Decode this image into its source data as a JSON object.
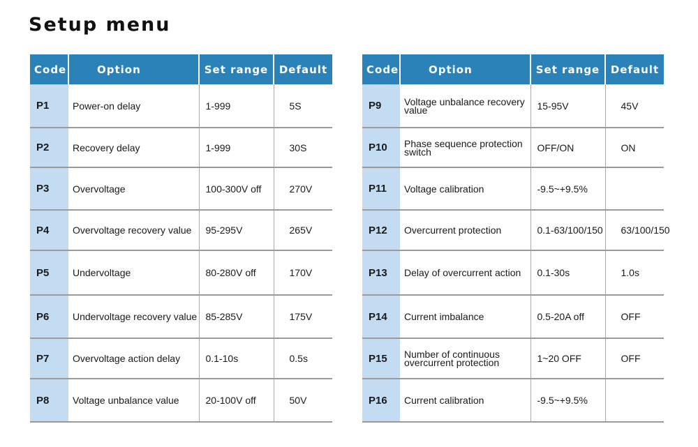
{
  "title": "Setup menu",
  "header": {
    "code": "Code",
    "option": "Option",
    "range": "Set range",
    "default": "Default"
  },
  "colors": {
    "header_bg": "#2a82b9",
    "code_bg": "#c3dcf1"
  },
  "left_rows": [
    {
      "code": "P1",
      "option": "Power-on delay",
      "range": "1-999",
      "default": "5S"
    },
    {
      "code": "P2",
      "option": "Recovery delay",
      "range": "1-999",
      "default": "30S"
    },
    {
      "code": "P3",
      "option": "Overvoltage",
      "range": "100-300V off",
      "default": "270V"
    },
    {
      "code": "P4",
      "option": "Overvoltage recovery value",
      "range": "95-295V",
      "default": "265V"
    },
    {
      "code": "P5",
      "option": "Undervoltage",
      "range": "80-280V off",
      "default": "170V"
    },
    {
      "code": "P6",
      "option": "Undervoltage recovery value",
      "range": "85-285V",
      "default": "175V"
    },
    {
      "code": "P7",
      "option": "Overvoltage action delay",
      "range": "0.1-10s",
      "default": "0.5s"
    },
    {
      "code": "P8",
      "option": "Voltage unbalance value",
      "range": "20-100V off",
      "default": "50V"
    }
  ],
  "right_rows": [
    {
      "code": "P9",
      "option": "Voltage unbalance recovery value",
      "range": "15-95V",
      "default": "45V"
    },
    {
      "code": "P10",
      "option": "Phase sequence protection switch",
      "range": "OFF/ON",
      "default": "ON"
    },
    {
      "code": "P11",
      "option": "Voltage calibration",
      "range": "-9.5~+9.5%",
      "default": ""
    },
    {
      "code": "P12",
      "option": "Overcurrent protection",
      "range": "0.1-63/100/150",
      "default": "63/100/150"
    },
    {
      "code": "P13",
      "option": "Delay of overcurrent action",
      "range": "0.1-30s",
      "default": "1.0s"
    },
    {
      "code": "P14",
      "option": "Current imbalance",
      "range": "0.5-20A off",
      "default": "OFF"
    },
    {
      "code": "P15",
      "option": "Number of continuous overcurrent protection",
      "range": "1~20 OFF",
      "default": "OFF"
    },
    {
      "code": "P16",
      "option": "Current calibration",
      "range": "-9.5~+9.5%",
      "default": ""
    }
  ]
}
